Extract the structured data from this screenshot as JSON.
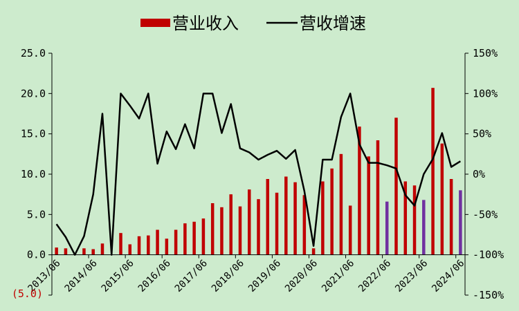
{
  "chart_data": {
    "type": "bar+line",
    "legend": {
      "position": "top-center",
      "items": [
        {
          "name": "营业收入",
          "symbol": "bar",
          "color": "#c00000"
        },
        {
          "name": "营收增速",
          "symbol": "line",
          "color": "#000000"
        }
      ]
    },
    "left_axis": {
      "range": [
        -5,
        25
      ],
      "visible_ticks": [
        0,
        5,
        10,
        15,
        20,
        25
      ],
      "tick_labels": [
        "0.0",
        "5.0",
        "10.0",
        "15.0",
        "20.0",
        "25.0"
      ],
      "negative_label": "(5.0)",
      "negative_label_color": "#c00000"
    },
    "right_axis": {
      "range": [
        -150,
        150
      ],
      "ticks": [
        -150,
        -100,
        -50,
        0,
        50,
        100,
        150
      ],
      "tick_labels": [
        "-150%",
        "-100%",
        "-50%",
        "0%",
        "50%",
        "100%",
        "150%"
      ]
    },
    "x_tick_labels": [
      "2013/06",
      "2014/06",
      "2015/06",
      "2016/06",
      "2017/06",
      "2018/06",
      "2019/06",
      "2020/06",
      "2021/06",
      "2022/06",
      "2023/06",
      "2024/06"
    ],
    "x_tick_every": 4,
    "grid": false,
    "series": [
      {
        "name": "营业收入",
        "type": "bar",
        "axis": "left",
        "color": "#c00000",
        "highlight_color": "#7030a0",
        "highlight_indices": [
          36,
          40,
          44
        ],
        "values": [
          0.9,
          0.8,
          0.0,
          0.8,
          0.7,
          1.4,
          0.0,
          2.7,
          1.3,
          2.3,
          2.4,
          3.1,
          2.0,
          3.1,
          3.9,
          4.1,
          4.5,
          6.4,
          5.9,
          7.5,
          6.0,
          8.1,
          6.9,
          9.4,
          7.7,
          9.7,
          9.0,
          7.4,
          0.8,
          9.1,
          10.7,
          12.5,
          6.1,
          15.9,
          12.2,
          14.2,
          6.6,
          17.0,
          9.1,
          8.6,
          6.8,
          20.7,
          13.8,
          9.4,
          8.0
        ]
      },
      {
        "name": "营收增速",
        "type": "line",
        "axis": "right",
        "color": "#000000",
        "values": [
          -62,
          -78,
          -100,
          -77,
          -25,
          75,
          -100,
          100,
          85,
          69,
          100,
          13,
          53,
          31,
          62,
          32,
          100,
          100,
          51,
          87,
          32,
          27,
          18,
          24,
          29,
          19,
          30,
          -21,
          -89,
          18,
          18,
          71,
          100,
          37,
          14,
          14,
          11,
          7,
          -26,
          -39,
          0,
          19,
          51,
          9,
          16
        ]
      }
    ]
  }
}
